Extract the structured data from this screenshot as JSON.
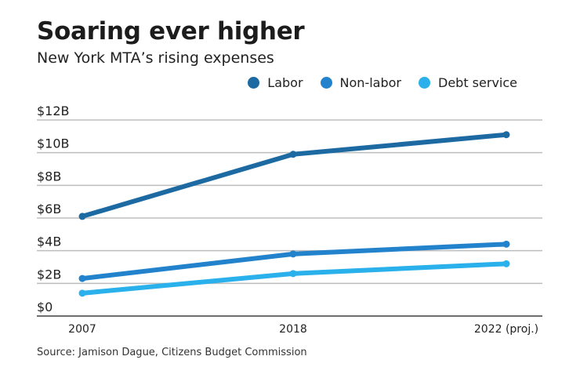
{
  "header": {
    "title": "Soaring ever higher",
    "subtitle": "New York MTA’s rising expenses"
  },
  "source": "Source: Jamison Dague, Citizens Budget Commission",
  "chart_data": {
    "type": "line",
    "title": "Soaring ever higher",
    "subtitle": "New York MTA’s rising expenses",
    "xlabel": "",
    "ylabel": "",
    "x": [
      "2007",
      "2018",
      "2022 (proj.)"
    ],
    "ylim": [
      0,
      12
    ],
    "y_ticks": [
      0,
      2,
      4,
      6,
      8,
      10,
      12
    ],
    "y_tick_labels": [
      "$0",
      "$2B",
      "$4B",
      "$6B",
      "$8B",
      "$10B",
      "$12B"
    ],
    "units": "billions USD",
    "grid": true,
    "legend_position": "top-right",
    "series": [
      {
        "name": "Labor",
        "color": "#1d6aa3",
        "values": [
          6.1,
          9.9,
          11.1
        ]
      },
      {
        "name": "Non-labor",
        "color": "#2283cc",
        "values": [
          2.3,
          3.8,
          4.4
        ]
      },
      {
        "name": "Debt service",
        "color": "#2ab0ea",
        "values": [
          1.4,
          2.6,
          3.2
        ]
      }
    ]
  }
}
